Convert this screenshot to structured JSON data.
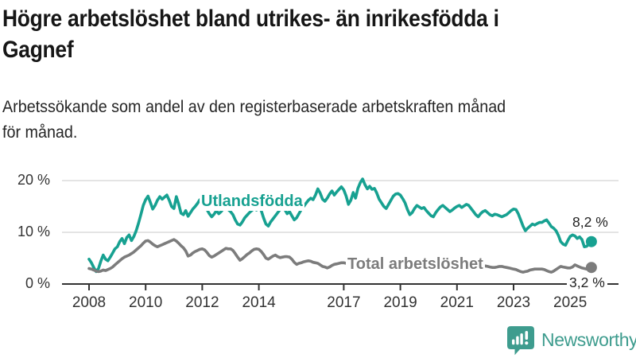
{
  "header": {
    "title": "Högre arbetslöshet bland utrikes- än inrikesfödda i Gagnef",
    "title_lines": [
      "Högre arbetslöshet bland utrikes- än inrikesfödda i",
      "Gagnef"
    ],
    "subtitle": "Arbetssökande som andel av den registerbaserade arbetskraften månad för månad.",
    "subtitle_lines": [
      "Arbetssökande som andel av den registerbaserade arbetskraften månad",
      "för månad."
    ]
  },
  "chart_data": {
    "type": "line",
    "frequency": "monthly",
    "x_start": "2008-01",
    "x_end": "2025-10",
    "x_tick_years": [
      2008,
      2010,
      2012,
      2014,
      2017,
      2019,
      2021,
      2023,
      2025
    ],
    "x_tick_labels": [
      "2008",
      "2010",
      "2012",
      "2014",
      "2017",
      "2019",
      "2021",
      "2023",
      "2025"
    ],
    "y_ticks": [
      0,
      10,
      20
    ],
    "y_tick_labels": [
      "0 %",
      "10 %",
      "20 %"
    ],
    "ylim": [
      0,
      21.5
    ],
    "grid": "horizontal-gridlines-at-10-and-20",
    "legend_position": "labels-on-lines",
    "colors": {
      "utlandsfodda_line": "#17a191",
      "total_line": "#7c7c7c",
      "gridline": "#dcdcdc",
      "axis": "#333333",
      "logo_teal": "#3e9c8e"
    },
    "series": [
      {
        "name": "Utlandsfödda",
        "label": "Utlandsfödda",
        "color": "#17a191",
        "end_label": "8,2 %",
        "end_value": 8.2,
        "values": [
          4.8,
          4.1,
          3.2,
          2.4,
          3.0,
          4.4,
          5.6,
          4.8,
          4.5,
          5.2,
          6.0,
          6.8,
          7.2,
          8.2,
          8.8,
          7.8,
          9.0,
          9.5,
          8.4,
          9.2,
          10.3,
          11.8,
          13.5,
          15.2,
          16.3,
          17.0,
          15.8,
          14.5,
          15.2,
          16.2,
          16.9,
          16.4,
          16.8,
          17.2,
          16.2,
          15.0,
          14.6,
          16.9,
          15.5,
          13.7,
          13.4,
          14.2,
          13.1,
          13.8,
          14.5,
          15.0,
          15.6,
          16.3,
          15.8,
          15.2,
          14.4,
          13.6,
          13.0,
          13.5,
          14.2,
          13.6,
          14.0,
          14.6,
          15.0,
          14.4,
          14.0,
          13.4,
          12.4,
          11.6,
          11.4,
          12.0,
          12.8,
          13.3,
          13.8,
          14.2,
          14.6,
          14.3,
          14.8,
          14.2,
          12.8,
          11.6,
          11.2,
          12.0,
          12.6,
          13.2,
          13.8,
          14.4,
          14.9,
          14.4,
          13.6,
          14.0,
          13.2,
          12.4,
          12.8,
          13.6,
          14.4,
          15.0,
          15.6,
          16.2,
          16.6,
          16.3,
          17.2,
          18.4,
          17.6,
          16.4,
          16.0,
          16.6,
          17.4,
          18.0,
          17.2,
          17.8,
          18.3,
          18.8,
          18.2,
          17.0,
          15.4,
          16.2,
          17.7,
          16.6,
          18.5,
          19.6,
          20.3,
          19.2,
          18.4,
          18.9,
          18.3,
          18.5,
          17.6,
          16.4,
          15.7,
          15.0,
          14.6,
          15.4,
          16.2,
          17.0,
          17.4,
          17.5,
          17.2,
          16.5,
          15.7,
          14.4,
          13.4,
          13.8,
          14.6,
          15.2,
          14.9,
          14.6,
          14.8,
          14.2,
          13.7,
          13.2,
          13.0,
          13.8,
          14.4,
          14.9,
          15.2,
          14.8,
          14.4,
          14.0,
          14.3,
          14.7,
          15.0,
          15.2,
          14.8,
          15.1,
          15.4,
          15.2,
          14.6,
          14.0,
          13.4,
          13.0,
          13.6,
          14.0,
          14.2,
          13.8,
          13.4,
          13.2,
          13.5,
          13.4,
          13.2,
          13.0,
          13.2,
          13.4,
          13.8,
          14.2,
          14.5,
          14.4,
          13.6,
          12.4,
          11.2,
          10.3,
          10.8,
          11.2,
          11.6,
          11.4,
          11.7,
          11.9,
          11.9,
          12.2,
          12.4,
          11.8,
          11.1,
          10.8,
          10.3,
          9.4,
          8.2,
          7.7,
          7.5,
          8.4,
          9.2,
          9.5,
          9.3,
          8.8,
          9.1,
          8.6,
          7.2,
          7.3,
          7.8,
          8.2
        ]
      },
      {
        "name": "Total arbetslöshet",
        "label": "Total arbetslöshet",
        "color": "#7c7c7c",
        "end_label": "3,2 %",
        "end_value": 3.2,
        "values": [
          3.0,
          2.9,
          2.7,
          2.5,
          2.4,
          2.5,
          2.7,
          2.6,
          2.8,
          3.0,
          3.3,
          3.7,
          4.1,
          4.5,
          4.9,
          5.2,
          5.4,
          5.6,
          5.9,
          6.2,
          6.6,
          7.0,
          7.4,
          7.9,
          8.3,
          8.4,
          8.1,
          7.7,
          7.4,
          7.2,
          7.4,
          7.6,
          7.8,
          8.0,
          8.2,
          8.4,
          8.6,
          8.3,
          7.9,
          7.4,
          7.0,
          6.4,
          5.4,
          5.6,
          6.0,
          6.3,
          6.5,
          6.7,
          6.8,
          6.6,
          6.1,
          5.5,
          5.2,
          5.4,
          5.7,
          6.0,
          6.3,
          6.6,
          6.9,
          6.8,
          6.8,
          6.5,
          5.9,
          5.2,
          4.6,
          4.9,
          5.3,
          5.7,
          6.0,
          6.4,
          6.7,
          6.8,
          6.7,
          6.3,
          5.7,
          5.0,
          4.8,
          5.1,
          5.4,
          5.6,
          5.3,
          5.1,
          5.2,
          5.3,
          5.3,
          5.2,
          4.8,
          4.2,
          3.8,
          4.0,
          4.1,
          4.3,
          4.4,
          4.5,
          4.4,
          4.2,
          4.1,
          4.0,
          3.7,
          3.4,
          3.3,
          3.1,
          3.3,
          3.6,
          3.8,
          3.9,
          4.0,
          4.1,
          4.1,
          4.0,
          3.8,
          3.5,
          3.3,
          3.4,
          3.6,
          3.7,
          3.8,
          3.9,
          4.0,
          4.1,
          4.0,
          3.9,
          3.7,
          3.4,
          3.2,
          3.3,
          3.5,
          3.6,
          3.7,
          3.8,
          3.9,
          4.0,
          3.9,
          3.8,
          3.6,
          3.4,
          3.3,
          3.4,
          3.6,
          3.7,
          3.8,
          3.9,
          4.0,
          4.1,
          4.2,
          4.4,
          4.8,
          5.1,
          5.2,
          5.1,
          4.9,
          4.7,
          4.6,
          4.5,
          4.4,
          4.3,
          4.4,
          4.3,
          4.2,
          4.0,
          3.9,
          3.8,
          3.7,
          3.6,
          3.6,
          3.5,
          3.5,
          3.4,
          3.5,
          3.4,
          3.3,
          3.2,
          3.2,
          3.3,
          3.4,
          3.4,
          3.3,
          3.2,
          3.1,
          3.0,
          2.9,
          2.8,
          2.6,
          2.4,
          2.3,
          2.4,
          2.5,
          2.7,
          2.8,
          2.9,
          2.9,
          2.9,
          2.9,
          2.8,
          2.6,
          2.4,
          2.3,
          2.5,
          2.8,
          3.1,
          3.4,
          3.3,
          3.2,
          3.1,
          3.1,
          3.3,
          3.7,
          3.5,
          3.3,
          3.1,
          3.0,
          2.9,
          3.0,
          3.2
        ]
      }
    ]
  },
  "footer": {
    "brand": "Newsworthy"
  }
}
